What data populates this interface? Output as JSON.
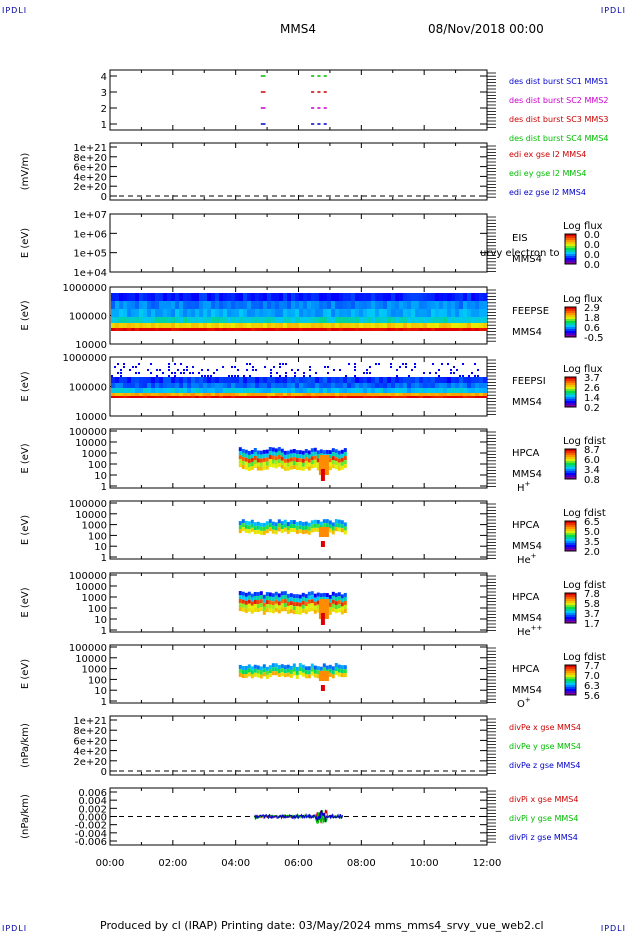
{
  "header": {
    "corner_tl": "IPDLI",
    "corner_tr": "IPDLI",
    "corner_bl": "IPDLI",
    "corner_br": "IPDLI",
    "mission": "MMS4",
    "date": "08/Nov/2018 00:00"
  },
  "footer": {
    "text": "Produced by cl (IRAP)   Printing date: 03/May/2024   mms_mms4_srvy_vue_web2.cl"
  },
  "colors": {
    "black": "#000000",
    "red": "#cc0000",
    "green": "#00bb00",
    "blue": "#0000cc",
    "magenta": "#cc00cc"
  },
  "chart_data": [
    {
      "type": "scatter",
      "panel": "des-dist-burst",
      "ylim": [
        0.5,
        4.5
      ],
      "yticks": [
        "4",
        "3",
        "2",
        "1"
      ],
      "legend": [
        {
          "name": "des dist burst SC1 MMS1",
          "color": "#0000cc"
        },
        {
          "name": "des dist burst SC2 MMS2",
          "color": "#cc00cc"
        },
        {
          "name": "des dist burst SC3 MMS3",
          "color": "#cc0000"
        },
        {
          "name": "des dist burst SC4 MMS4",
          "color": "#00bb00"
        }
      ],
      "segments": [
        {
          "sc": 4,
          "t": [
            4.8,
            4.95
          ]
        },
        {
          "sc": 4,
          "t": [
            6.4,
            6.5
          ]
        },
        {
          "sc": 4,
          "t": [
            6.6,
            6.7
          ]
        },
        {
          "sc": 4,
          "t": [
            6.8,
            6.9
          ]
        },
        {
          "sc": 3,
          "t": [
            4.8,
            4.95
          ]
        },
        {
          "sc": 3,
          "t": [
            6.4,
            6.5
          ]
        },
        {
          "sc": 3,
          "t": [
            6.6,
            6.7
          ]
        },
        {
          "sc": 3,
          "t": [
            6.8,
            6.9
          ]
        },
        {
          "sc": 2,
          "t": [
            4.8,
            4.95
          ]
        },
        {
          "sc": 2,
          "t": [
            6.4,
            6.5
          ]
        },
        {
          "sc": 2,
          "t": [
            6.6,
            6.7
          ]
        },
        {
          "sc": 2,
          "t": [
            6.8,
            6.9
          ]
        },
        {
          "sc": 1,
          "t": [
            4.8,
            4.95
          ]
        },
        {
          "sc": 1,
          "t": [
            6.4,
            6.5
          ]
        },
        {
          "sc": 1,
          "t": [
            6.6,
            6.7
          ]
        },
        {
          "sc": 1,
          "t": [
            6.8,
            6.9
          ]
        }
      ]
    },
    {
      "type": "line",
      "panel": "edi-e-field",
      "ylabel": "(mV/m)",
      "yticks": [
        "1e+21",
        "8e+20",
        "6e+20",
        "4e+20",
        "2e+20",
        "0"
      ],
      "ylim": [
        0,
        1e+21
      ],
      "zero_line": true,
      "series": [
        {
          "name": "edi ex gse l2 MMS4",
          "color": "#cc0000",
          "values": []
        },
        {
          "name": "edi ey gse l2 MMS4",
          "color": "#00bb00",
          "values": []
        },
        {
          "name": "edi ez gse l2 MMS4",
          "color": "#0000cc",
          "values": []
        }
      ]
    },
    {
      "type": "heatmap",
      "panel": "eis",
      "ylabel": "E (eV)",
      "yticks": [
        "1e+07",
        "1e+06",
        "1e+05",
        "1e+04"
      ],
      "label1": "EIS",
      "label2": "MMS4",
      "overlay": "urvy electron to",
      "colorbar_title": "Log flux",
      "colorbar_ticks": [
        "0.0",
        "0.0",
        "0.0",
        "0.0"
      ]
    },
    {
      "type": "heatmap",
      "panel": "feepse",
      "ylabel": "E (eV)",
      "yticks": [
        "1000000",
        "100000",
        "10000"
      ],
      "label1": "FEEPSE",
      "label2": "MMS4",
      "colorbar_title": "Log flux",
      "colorbar_ticks": [
        "2.9",
        "1.8",
        "0.6",
        "-0.5"
      ],
      "time_range": [
        0,
        12
      ]
    },
    {
      "type": "heatmap",
      "panel": "feepsi",
      "ylabel": "E (eV)",
      "yticks": [
        "1000000",
        "100000",
        "10000"
      ],
      "label1": "FEEPSI",
      "label2": "MMS4",
      "colorbar_title": "Log flux",
      "colorbar_ticks": [
        "3.7",
        "2.6",
        "1.4",
        "0.2"
      ],
      "time_range": [
        0,
        12
      ]
    },
    {
      "type": "heatmap",
      "panel": "hpca-h",
      "ylabel": "E (eV)",
      "yticks": [
        "100000",
        "10000",
        "1000",
        "100",
        "10",
        "1"
      ],
      "label1": "HPCA",
      "label2": "MMS4",
      "species": "H",
      "species_sup": "+",
      "colorbar_title": "Log fdist",
      "colorbar_ticks": [
        "8.7",
        "6.0",
        "3.4",
        "0.8"
      ],
      "time_range": [
        4.1,
        7.5
      ]
    },
    {
      "type": "heatmap",
      "panel": "hpca-he",
      "ylabel": "E (eV)",
      "yticks": [
        "100000",
        "10000",
        "1000",
        "100",
        "10",
        "1"
      ],
      "label1": "HPCA",
      "label2": "MMS4",
      "species": "He",
      "species_sup": "+",
      "colorbar_title": "Log fdist",
      "colorbar_ticks": [
        "6.5",
        "5.0",
        "3.5",
        "2.0"
      ],
      "time_range": [
        4.1,
        7.5
      ]
    },
    {
      "type": "heatmap",
      "panel": "hpca-hepp",
      "ylabel": "E (eV)",
      "yticks": [
        "100000",
        "10000",
        "1000",
        "100",
        "10",
        "1"
      ],
      "label1": "HPCA",
      "label2": "MMS4",
      "species": "He",
      "species_sup": "++",
      "colorbar_title": "Log fdist",
      "colorbar_ticks": [
        "7.8",
        "5.8",
        "3.7",
        "1.7"
      ],
      "time_range": [
        4.1,
        7.5
      ]
    },
    {
      "type": "heatmap",
      "panel": "hpca-o",
      "ylabel": "E (eV)",
      "yticks": [
        "100000",
        "10000",
        "1000",
        "100",
        "10",
        "1"
      ],
      "label1": "HPCA",
      "label2": "MMS4",
      "species": "O",
      "species_sup": "+",
      "colorbar_title": "Log fdist",
      "colorbar_ticks": [
        "7.7",
        "7.0",
        "6.3",
        "5.6"
      ],
      "time_range": [
        4.1,
        7.5
      ]
    },
    {
      "type": "line",
      "panel": "divpe",
      "ylabel": "(nPa/km)",
      "yticks": [
        "1e+21",
        "8e+20",
        "6e+20",
        "4e+20",
        "2e+20",
        "0"
      ],
      "ylim": [
        0,
        1e+21
      ],
      "zero_line": true,
      "series": [
        {
          "name": "divPe x gse MMS4",
          "color": "#cc0000",
          "values": []
        },
        {
          "name": "divPe y gse MMS4",
          "color": "#00bb00",
          "values": []
        },
        {
          "name": "divPe z gse MMS4",
          "color": "#0000cc",
          "values": []
        }
      ]
    },
    {
      "type": "line",
      "panel": "divpi",
      "ylabel": "(nPa/km)",
      "yticks": [
        "0.006",
        "0.004",
        "0.002",
        "0.000",
        "-0.002",
        "-0.004",
        "-0.006"
      ],
      "ylim": [
        -0.007,
        0.007
      ],
      "zero_line": true,
      "time_range": [
        4.6,
        7.4
      ],
      "series": [
        {
          "name": "divPi x gse MMS4",
          "color": "#cc0000",
          "values": []
        },
        {
          "name": "divPi y gse MMS4",
          "color": "#00bb00",
          "values": []
        },
        {
          "name": "divPi z gse MMS4",
          "color": "#0000cc",
          "values": []
        }
      ]
    }
  ],
  "xaxis": {
    "xlim": [
      0,
      12
    ],
    "ticks": [
      "00:00",
      "02:00",
      "04:00",
      "06:00",
      "08:00",
      "10:00",
      "12:00"
    ]
  }
}
